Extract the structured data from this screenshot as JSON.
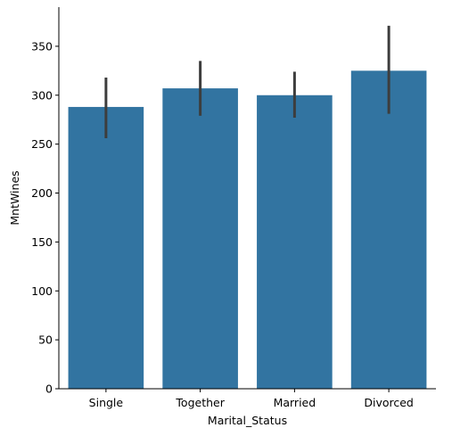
{
  "chart_data": {
    "type": "bar",
    "categories": [
      "Single",
      "Together",
      "Married",
      "Divorced"
    ],
    "values": [
      288,
      307,
      300,
      325
    ],
    "error_bars": [
      {
        "low": 256,
        "high": 318
      },
      {
        "low": 279,
        "high": 335
      },
      {
        "low": 277,
        "high": 324
      },
      {
        "low": 281,
        "high": 371
      }
    ],
    "xlabel": "Marital_Status",
    "ylabel": "MntWines",
    "ylim": [
      0,
      390
    ],
    "yticks": [
      0,
      50,
      100,
      150,
      200,
      250,
      300,
      350
    ],
    "ytick_labels": [
      "0",
      "50",
      "100",
      "150",
      "200",
      "250",
      "300",
      "350"
    ],
    "grid": false,
    "bar_color": "#3274a1",
    "error_bar_color": "#3d3d3d"
  }
}
